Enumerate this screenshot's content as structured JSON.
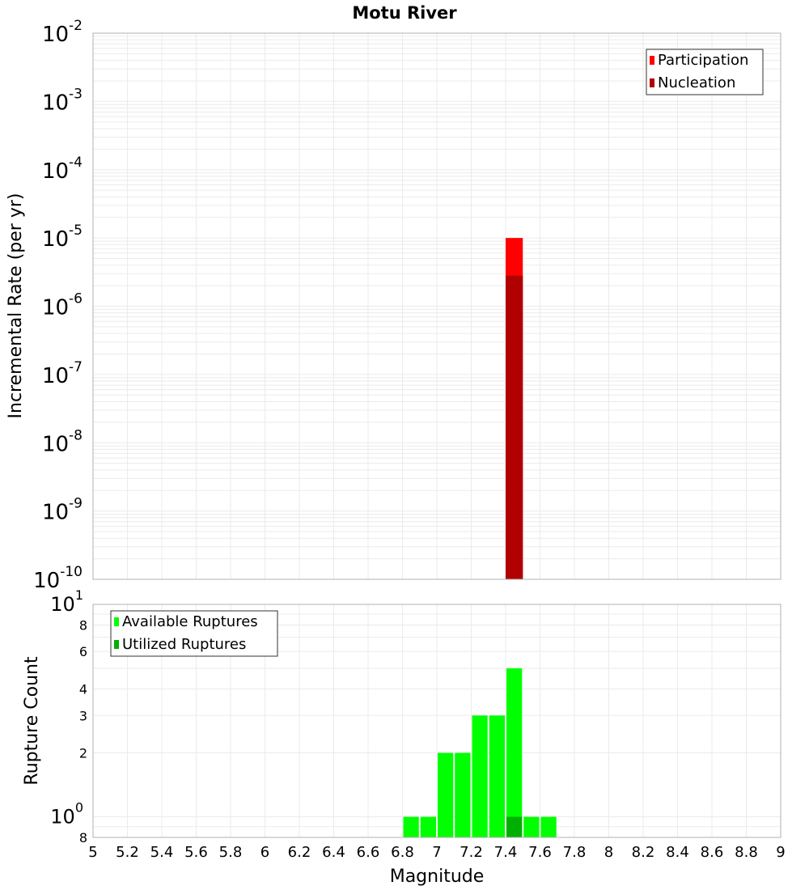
{
  "chart_data": [
    {
      "type": "bar",
      "title": "Motu River",
      "ylabel": "Incremental Rate (per yr)",
      "xlabel": "",
      "yscale": "log",
      "ylim": [
        1e-10,
        0.01
      ],
      "xlim": [
        5,
        9
      ],
      "bin_width": 0.1,
      "y_ticks": [
        {
          "base": "10",
          "exp": "-2"
        },
        {
          "base": "10",
          "exp": "-3"
        },
        {
          "base": "10",
          "exp": "-4"
        },
        {
          "base": "10",
          "exp": "-5"
        },
        {
          "base": "10",
          "exp": "-6"
        },
        {
          "base": "10",
          "exp": "-7"
        },
        {
          "base": "10",
          "exp": "-8"
        },
        {
          "base": "10",
          "exp": "-9"
        },
        {
          "base": "10",
          "exp": "-10"
        }
      ],
      "legend": {
        "placement": "top-right",
        "entries": [
          "Participation",
          "Nucleation"
        ]
      },
      "series": [
        {
          "name": "Participation",
          "color": "#ff0000",
          "x": [
            7.45
          ],
          "values": [
            1e-05
          ]
        },
        {
          "name": "Nucleation",
          "color": "#b00000",
          "x": [
            7.45
          ],
          "values": [
            2.8e-06
          ]
        }
      ]
    },
    {
      "type": "bar",
      "ylabel": "Rupture Count",
      "xlabel": "Magnitude",
      "yscale": "log",
      "ylim": [
        0.8,
        10
      ],
      "xlim": [
        5,
        9
      ],
      "bin_width": 0.1,
      "x_ticks": [
        "5",
        "5.2",
        "5.4",
        "5.6",
        "5.8",
        "6",
        "6.2",
        "6.4",
        "6.6",
        "6.8",
        "7",
        "7.2",
        "7.4",
        "7.6",
        "7.8",
        "8",
        "8.2",
        "8.4",
        "8.6",
        "8.8",
        "9"
      ],
      "y_ticks": [
        {
          "value": 10,
          "base": "10",
          "exp": "1"
        },
        {
          "value": 8,
          "base": "8",
          "exp": ""
        },
        {
          "value": 6,
          "base": "6",
          "exp": ""
        },
        {
          "value": 4,
          "base": "4",
          "exp": ""
        },
        {
          "value": 3,
          "base": "3",
          "exp": ""
        },
        {
          "value": 2,
          "base": "2",
          "exp": ""
        },
        {
          "value": 1,
          "base": "10",
          "exp": "0"
        },
        {
          "value": 0.8,
          "base": "8",
          "exp": ""
        }
      ],
      "legend": {
        "placement": "top-left",
        "entries": [
          "Available Ruptures",
          "Utilized Ruptures"
        ]
      },
      "series": [
        {
          "name": "Available Ruptures",
          "color": "#00ff00",
          "x": [
            6.85,
            6.95,
            7.05,
            7.15,
            7.25,
            7.35,
            7.45,
            7.55,
            7.65
          ],
          "values": [
            1,
            1,
            2,
            2,
            3,
            3,
            5,
            1,
            1
          ]
        },
        {
          "name": "Utilized Ruptures",
          "color": "#00b000",
          "x": [
            7.45
          ],
          "values": [
            1
          ]
        }
      ]
    }
  ]
}
